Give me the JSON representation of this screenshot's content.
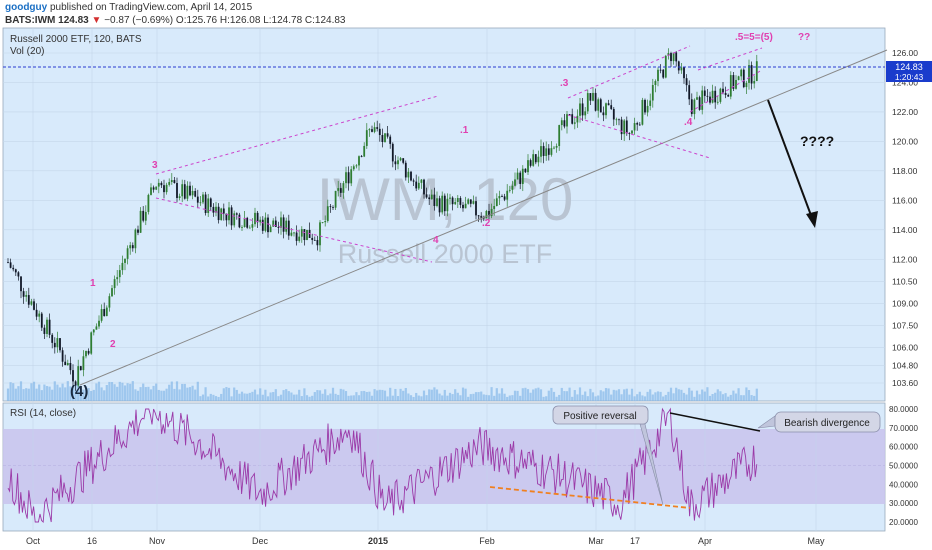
{
  "header": {
    "author": "goodguy",
    "published_text": "published on TradingView.com, April 14, 2015",
    "symbol_line": "BATS:IWM 124.83",
    "change_arrow": "▼",
    "change": "−0.87 (−0.69%)",
    "ohlc": "O:125.76 H:126.08 L:124.78 C:124.83"
  },
  "main_pane": {
    "title": "Russell 2000 ETF, 120, BATS",
    "vol_label": "Vol (20)",
    "watermark_symbol": "IWM, 120",
    "watermark_name": "Russell 2000 ETF",
    "last_price_label": "124.83",
    "countdown_label": "1:20:43"
  },
  "rsi_pane": {
    "title": "RSI (14, close)",
    "callouts": [
      "Positive reversal",
      "Bearish divergence"
    ]
  },
  "annotations": {
    "wave_labels": [
      "(4)",
      "1",
      "2",
      "3",
      "4",
      ".1",
      ".2",
      ".3",
      ".4",
      ".5=5=(5)",
      "??"
    ],
    "question": "????"
  },
  "colors": {
    "pane_bg": "#d8eafb",
    "up_candle": "#2e7d32",
    "down_candle": "#111827",
    "volume": "#7fb3e6",
    "trendline": "#888888",
    "channel": "#cc44cc",
    "wave_label": "#e040b0",
    "rsi_line": "#9b3aa8",
    "rsi_band": "#c9c3ec",
    "divergence_line": "#f08020",
    "last_price": "#1a3ccc"
  },
  "chart_data": [
    {
      "type": "candlestick",
      "title": "Russell 2000 ETF, 120, BATS",
      "symbol": "IWM",
      "timeframe": "120",
      "x_tick_labels": [
        "Oct",
        "16",
        "Nov",
        "Dec",
        "2015",
        "Feb",
        "Mar",
        "17",
        "Apr",
        "May"
      ],
      "y_tick_labels": [
        "126.00",
        "124.00",
        "122.00",
        "120.00",
        "118.00",
        "116.00",
        "114.00",
        "112.00",
        "110.50",
        "109.00",
        "107.50",
        "106.00",
        "104.80",
        "103.60"
      ],
      "ylim": [
        103.0,
        126.8
      ],
      "approx_closes_by_period": [
        {
          "period": "early Oct 2014",
          "close": 111.8
        },
        {
          "period": "mid Oct 2014 low",
          "close": 104.0
        },
        {
          "period": "early Nov 2014",
          "close": 117.3
        },
        {
          "period": "late Nov 2014",
          "close": 115.0
        },
        {
          "period": "mid Dec 2014",
          "close": 113.6
        },
        {
          "period": "end Dec 2014",
          "close": 121.0
        },
        {
          "period": "mid Jan 2015",
          "close": 116.0
        },
        {
          "period": "early Feb 2015",
          "close": 115.1
        },
        {
          "period": "late Feb 2015",
          "close": 122.9
        },
        {
          "period": "mid Mar 2015",
          "close": 120.5
        },
        {
          "period": "late Mar 2015",
          "close": 126.1
        },
        {
          "period": "end Mar 2015",
          "close": 122.4
        },
        {
          "period": "mid Apr 2015",
          "close": 124.83
        }
      ],
      "last_close": 124.83,
      "ohlc_last": {
        "open": 125.76,
        "high": 126.08,
        "low": 124.78,
        "close": 124.83
      },
      "change": -0.87,
      "change_pct": -0.69
    },
    {
      "type": "line",
      "title": "RSI (14, close)",
      "y_tick_labels": [
        "80.0000",
        "70.0000",
        "60.0000",
        "50.0000",
        "40.0000",
        "30.0000",
        "20.0000"
      ],
      "ylim": [
        18,
        81
      ],
      "band": [
        30,
        70
      ],
      "approx_values": [
        {
          "period": "early Oct 2014",
          "value": 45
        },
        {
          "period": "mid Oct 2014",
          "value": 22
        },
        {
          "period": "late Oct 2014",
          "value": 80
        },
        {
          "period": "Nov 2014",
          "value": 62
        },
        {
          "period": "Dec 2014",
          "value": 35
        },
        {
          "period": "late Dec 2014",
          "value": 70
        },
        {
          "period": "Jan 2015",
          "value": 28
        },
        {
          "period": "Feb 2015",
          "value": 60
        },
        {
          "period": "Mar 2015",
          "value": 45
        },
        {
          "period": "mid Mar 2015",
          "value": 30
        },
        {
          "period": "late Mar 2015",
          "value": 77
        },
        {
          "period": "end Mar 2015",
          "value": 28
        },
        {
          "period": "Apr 2015",
          "value": 55
        }
      ]
    }
  ]
}
